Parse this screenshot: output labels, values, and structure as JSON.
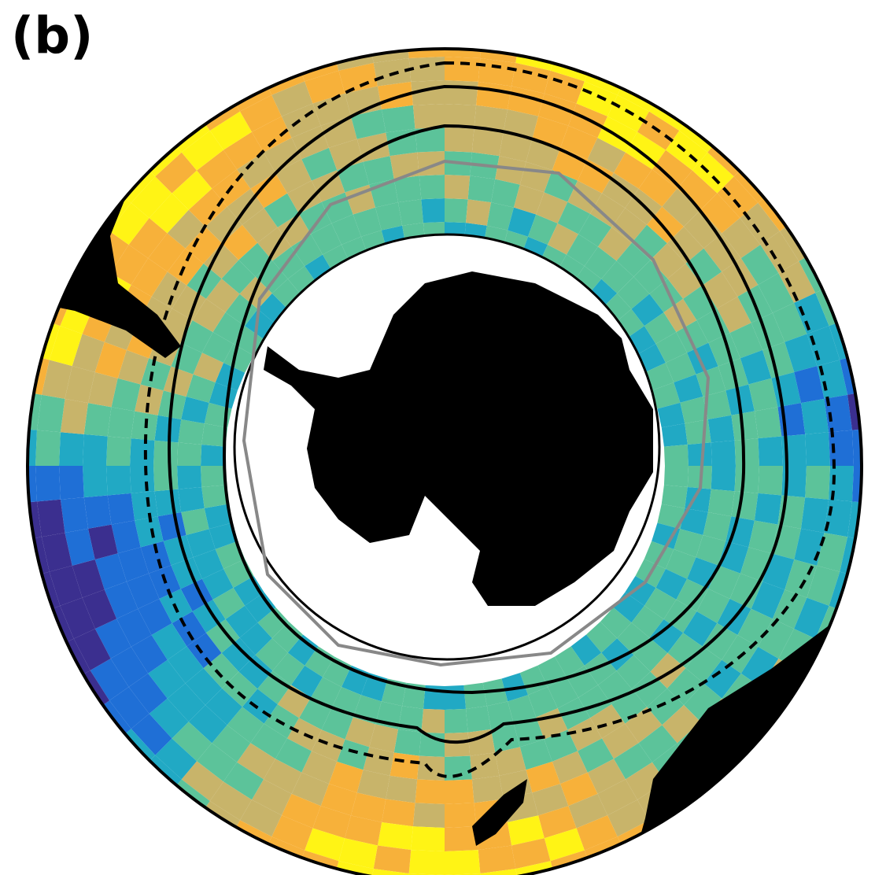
{
  "panel_label": "(b)"
}
